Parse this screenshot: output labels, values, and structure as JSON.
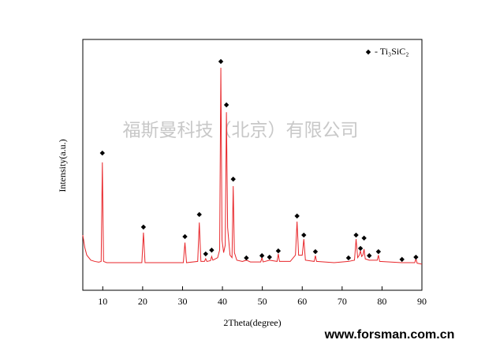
{
  "chart_data": {
    "type": "line",
    "x_label": "2Theta(degree)",
    "y_label": "Intensity(a.u.)",
    "x": [
      5,
      5.5,
      6,
      7,
      8,
      9,
      9.6,
      9.9,
      10.2,
      11,
      15,
      19.8,
      20.2,
      20.6,
      25,
      30.2,
      30.6,
      31,
      33.8,
      34.2,
      34.6,
      35.5,
      35.8,
      36.1,
      37,
      37.3,
      37.6,
      38.8,
      39.3,
      39.6,
      39.9,
      40.3,
      40.7,
      41.0,
      41.3,
      41.9,
      42.4,
      42.7,
      43.0,
      43.6,
      45,
      46,
      47,
      49.6,
      49.9,
      50.2,
      51.8,
      53.7,
      54.0,
      54.3,
      57,
      58.3,
      58.7,
      59.1,
      60.0,
      60.4,
      60.8,
      63.0,
      63.3,
      63.6,
      68,
      71.6,
      73.1,
      73.5,
      73.9,
      74.3,
      74.6,
      74.9,
      75.2,
      75.5,
      75.8,
      76.8,
      78.8,
      79.1,
      79.4,
      85,
      88.2,
      88.5,
      88.8,
      90
    ],
    "values": [
      22,
      17,
      14,
      12,
      11.5,
      11.2,
      11.5,
      51,
      11.5,
      11,
      11,
      11,
      23,
      11,
      11,
      11,
      19,
      11,
      11.5,
      27,
      11.5,
      11.5,
      12.6,
      11.5,
      11.8,
      13.5,
      12,
      13,
      16,
      88.7,
      20,
      15,
      18,
      71,
      25,
      14,
      13,
      41.5,
      15,
      12,
      11.5,
      12,
      11.3,
      11.3,
      13,
      11.3,
      12,
      11.5,
      14.5,
      11.5,
      11.5,
      14,
      27.4,
      14,
      14,
      20.4,
      12,
      11.5,
      13.8,
      11.5,
      11,
      11.5,
      12,
      20.4,
      13,
      14,
      15.7,
      13.5,
      14,
      16.4,
      12.5,
      12,
      12,
      14,
      11.5,
      11,
      11,
      12.6,
      10.8,
      10.4
    ],
    "color": "#e8262a",
    "markers": {
      "name": "- Ti₃SiC₂",
      "color": "#000000",
      "x": [
        9.9,
        20.2,
        30.6,
        34.2,
        35.8,
        37.3,
        39.6,
        41.0,
        42.7,
        46.0,
        49.9,
        51.8,
        54.0,
        58.7,
        60.4,
        63.3,
        71.6,
        73.5,
        74.6,
        75.5,
        76.8,
        79.1,
        85.0,
        88.5
      ],
      "values": [
        54.7,
        25.2,
        21.4,
        30.2,
        14.5,
        16,
        91.2,
        73.9,
        44.3,
        12.9,
        13.8,
        13.2,
        15.7,
        29.6,
        22,
        15.4,
        12.9,
        22,
        16.7,
        20.8,
        13.8,
        15.4,
        12.3,
        13.2
      ]
    },
    "legend": "upper right",
    "xlim": [
      5,
      90
    ],
    "xticks": [
      10,
      20,
      30,
      40,
      50,
      60,
      70,
      80,
      90
    ],
    "ylim": [
      0,
      100
    ]
  },
  "watermark": "福斯曼科技（北京）有限公司",
  "website": "www.forsman.com.cn"
}
